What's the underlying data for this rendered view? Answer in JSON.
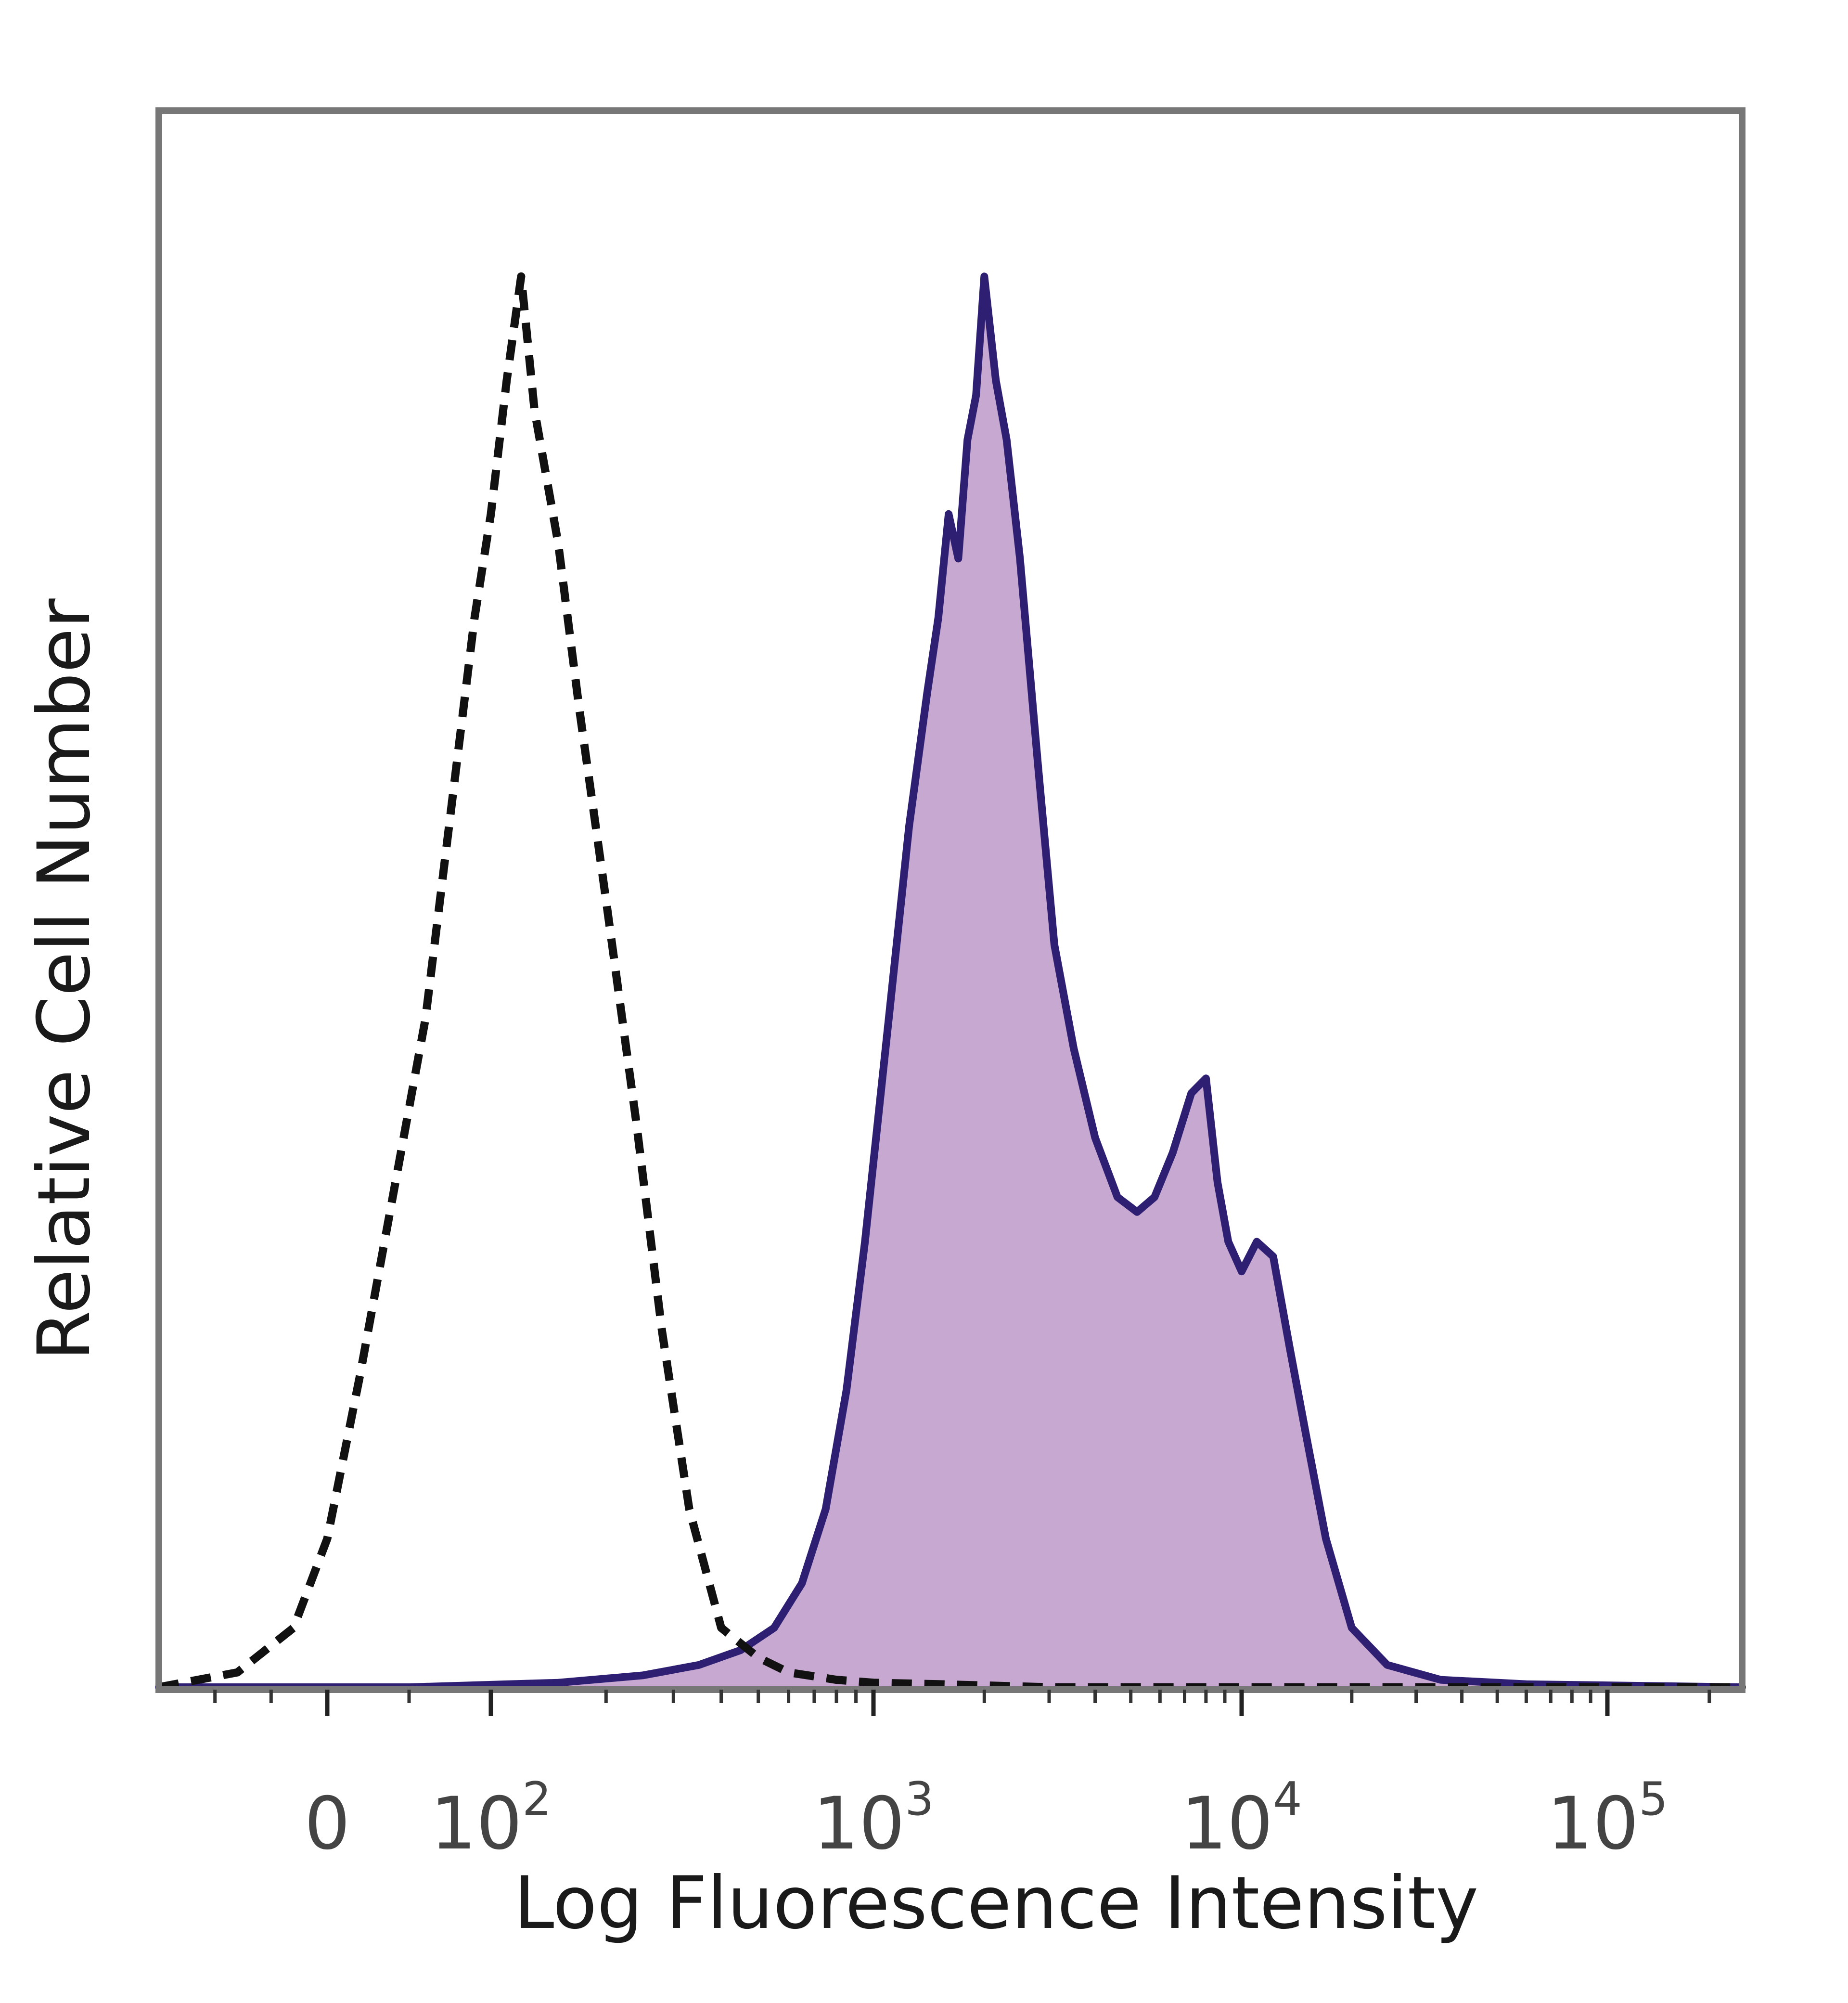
{
  "chart_data": {
    "type": "area",
    "title": "",
    "xlabel": "Log Fluorescence Intensity",
    "ylabel": "Relative Cell Number",
    "x_scale": "biexponential",
    "xlim": [
      -150,
      250000
    ],
    "ylim": [
      0,
      100
    ],
    "x_ticks": [
      {
        "value": 0,
        "base": "0",
        "exp": ""
      },
      {
        "value": 100,
        "base": "10",
        "exp": "2"
      },
      {
        "value": 1000,
        "base": "10",
        "exp": "3"
      },
      {
        "value": 10000,
        "base": "10",
        "exp": "4"
      },
      {
        "value": 100000,
        "base": "10",
        "exp": "5"
      }
    ],
    "grid": false,
    "legend": "none",
    "colors": {
      "filled_stroke": "#2e1f73",
      "filled_fill": "#c7a8d0",
      "dashed_stroke": "#111111",
      "frame": "#777777"
    },
    "series": [
      {
        "style": "dashed",
        "x": [
          -150,
          -80,
          -30,
          0,
          20,
          40,
          60,
          70,
          80,
          90,
          100,
          110,
          120,
          130,
          150,
          170,
          200,
          240,
          280,
          330,
          400,
          500,
          600,
          800,
          1000,
          1500,
          3000,
          10000,
          250000
        ],
        "y": [
          0,
          1,
          4,
          10,
          21,
          33,
          45,
          54,
          63,
          72,
          79,
          88,
          95,
          86,
          77,
          66,
          53,
          38,
          24,
          12,
          4,
          2,
          1,
          0.5,
          0.3,
          0.2,
          0,
          0,
          0
        ]
      },
      {
        "style": "filled",
        "x": [
          -150,
          50,
          150,
          250,
          350,
          450,
          550,
          650,
          750,
          850,
          950,
          1100,
          1250,
          1400,
          1500,
          1600,
          1700,
          1800,
          1900,
          2000,
          2150,
          2300,
          2500,
          2800,
          3100,
          3500,
          4000,
          4600,
          5200,
          5800,
          6500,
          7300,
          8000,
          8600,
          9200,
          10000,
          11000,
          12200,
          13500,
          15000,
          17000,
          20000,
          25000,
          35000,
          60000,
          250000
        ],
        "y": [
          0,
          0,
          0.3,
          0.8,
          1.5,
          2.5,
          4,
          7,
          12,
          20,
          30,
          45,
          58,
          67,
          72,
          79,
          76,
          84,
          87,
          95,
          88,
          84,
          76,
          62,
          50,
          43,
          37,
          33,
          32,
          33,
          36,
          40,
          41,
          34,
          30,
          28,
          30,
          29,
          23,
          17,
          10,
          4,
          1.5,
          0.5,
          0.2,
          0
        ]
      }
    ]
  }
}
